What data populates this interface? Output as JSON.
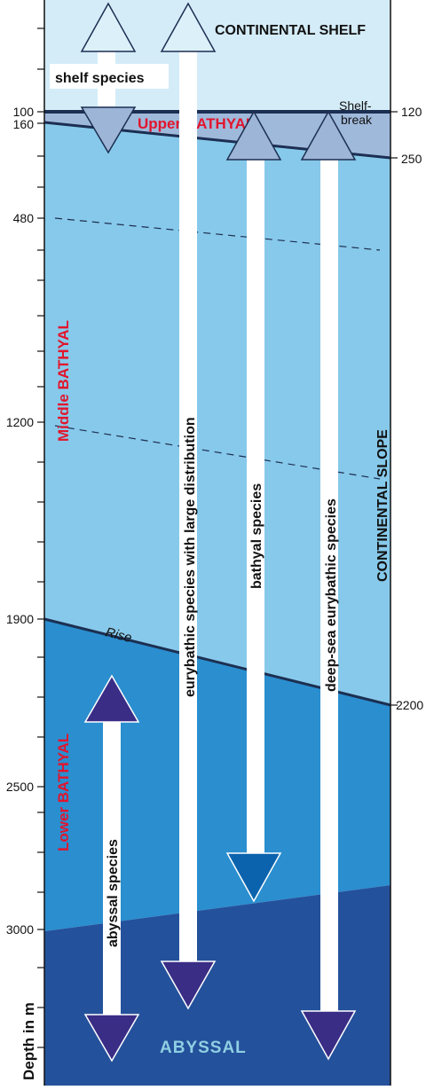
{
  "zones": {
    "continental_shelf": "CONTINENTAL SHELF",
    "shelf_break": [
      "Shelf-",
      "break"
    ],
    "upper_bathyal": "Upper BATHYAL",
    "middle_bathyal": "Middle BATHYAL",
    "lower_bathyal": "Lower BATHYAL",
    "continental_slope": "CONTINENTAL SLOPE",
    "rise": "Rise",
    "abyssal": "ABYSSAL"
  },
  "axis": {
    "label": "Depth in m",
    "left_ticks": [
      "100",
      "160",
      "480",
      "1200",
      "1900",
      "2500",
      "3000"
    ],
    "right_ticks": [
      "120",
      "250",
      "2200"
    ]
  },
  "species": {
    "shelf": "shelf species",
    "eurybathic": "eurybathic species with large distribution",
    "bathyal": "bathyal species",
    "deep_sea_eurybathic": "deep-sea eurybathic species",
    "abyssal": "abyssal species"
  },
  "colors": {
    "shelf_water": "#d4ecf8",
    "upper_bathyal": "#9fb9db",
    "middle_bathyal": "#87c9ea",
    "lower_bathyal": "#2a8ecf",
    "abyssal": "#24519b",
    "zone_label_red": "#e2152d",
    "arrowhead_light": "#dcf0fa",
    "arrowhead_mid": "#9db5d6",
    "arrowhead_teal": "#0b63ad",
    "arrowhead_dark": "#3a2d86"
  }
}
